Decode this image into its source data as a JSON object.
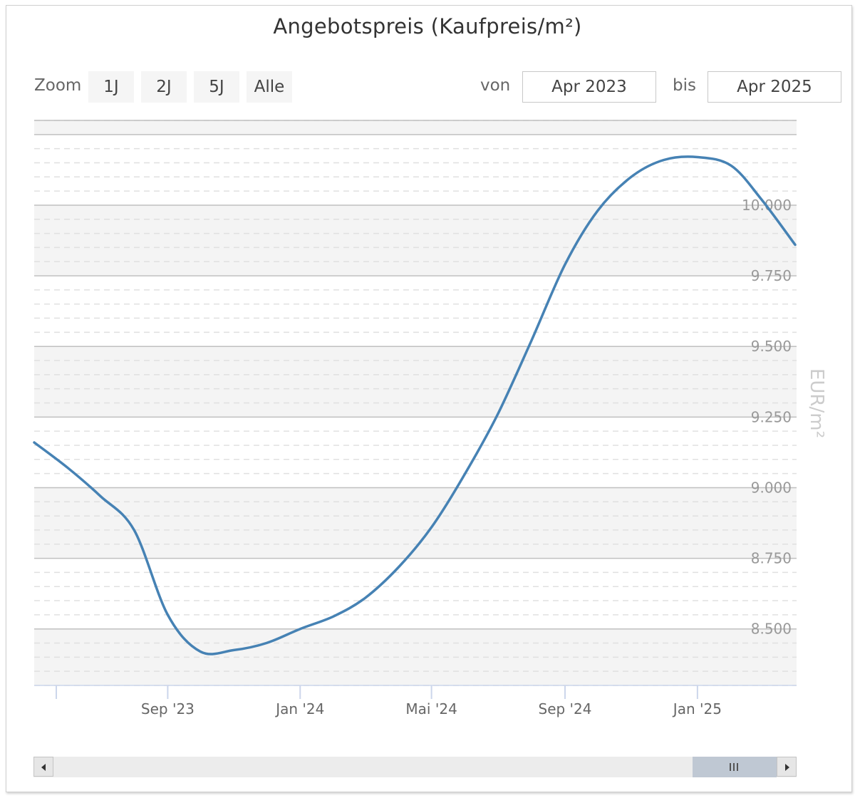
{
  "title": "Angebotspreis (Kaufpreis/m²)",
  "zoom": {
    "label": "Zoom",
    "buttons": [
      "1J",
      "2J",
      "5J",
      "Alle"
    ]
  },
  "range": {
    "from_label": "von",
    "from_value": "Apr 2023",
    "to_label": "bis",
    "to_value": "Apr 2025"
  },
  "colors": {
    "series": "#4682b4",
    "band": "#f4f4f4",
    "grid_major": "#c0c0c0",
    "grid_minor": "#e0e0e0"
  },
  "chart_data": {
    "type": "line",
    "title": "Angebotspreis (Kaufpreis/m²)",
    "ylabel": "EUR/m²",
    "y_axis_side": "right",
    "ylim": [
      8300,
      10300
    ],
    "y_ticks": [
      8500,
      8750,
      9000,
      9250,
      9500,
      9750,
      10000
    ],
    "y_tick_labels": [
      "8.500",
      "8.750",
      "9.000",
      "9.250",
      "9.500",
      "9.750",
      "10.000"
    ],
    "xlim": [
      "2023-05-01",
      "2025-04-01"
    ],
    "x_ticks": [
      "2023-09-01",
      "2024-01-01",
      "2024-05-01",
      "2024-09-01",
      "2025-01-01"
    ],
    "x_tick_labels": [
      "Sep '23",
      "Jan '24",
      "Mai '24",
      "Sep '24",
      "Jan '25"
    ],
    "grid": true,
    "alternate_bands": true,
    "series": [
      {
        "x": [
          "2023-05-01",
          "2023-06-01",
          "2023-07-01",
          "2023-08-01",
          "2023-09-01",
          "2023-10-01",
          "2023-11-01",
          "2023-12-01",
          "2024-01-01",
          "2024-02-01",
          "2024-03-01",
          "2024-04-01",
          "2024-05-01",
          "2024-06-01",
          "2024-07-01",
          "2024-08-01",
          "2024-09-01",
          "2024-10-01",
          "2024-11-01",
          "2024-12-01",
          "2025-01-01",
          "2025-02-01",
          "2025-03-01",
          "2025-04-01"
        ],
        "values": [
          9160,
          9070,
          8970,
          8850,
          8550,
          8420,
          8425,
          8450,
          8500,
          8545,
          8610,
          8720,
          8860,
          9050,
          9260,
          9520,
          9790,
          9980,
          10100,
          10160,
          10170,
          10140,
          10020,
          9860
        ]
      }
    ]
  },
  "navigator": {
    "grip_icon": "grip-lines-icon",
    "left_icon": "scroll-left-icon",
    "right_icon": "scroll-right-icon"
  }
}
